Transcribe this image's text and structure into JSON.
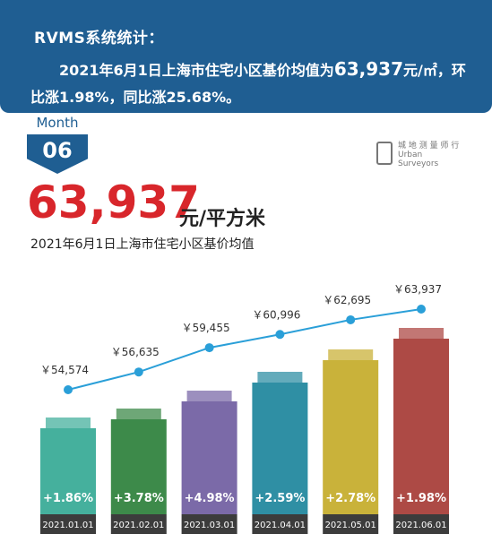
{
  "banner": {
    "title": "RVMS系统统计：",
    "line_pre": "2021年6月1日上海市住宅小区基价均值为",
    "line_value": "63,937",
    "line_post": "元/㎡，环比涨1.98%，同比涨25.68%。"
  },
  "month": {
    "label": "Month",
    "number": "06"
  },
  "logo": {
    "line1": "城 地 测 量 师 行",
    "line2": "Urban",
    "line3": "Surveyors"
  },
  "headline": {
    "value": "63,937",
    "unit": "元/平方米",
    "subtitle": "2021年6月1日上海市住宅小区基价均值"
  },
  "colors": {
    "line": "#2a9fd8",
    "bars": [
      "#45b09d",
      "#3d8a4a",
      "#7b6aa8",
      "#2f8fa4",
      "#c9b23a",
      "#ad4a45"
    ],
    "date_bg": "#3c3c3c"
  },
  "chart_data": {
    "type": "bar",
    "categories": [
      "2021.01.01",
      "2021.02.01",
      "2021.03.01",
      "2021.04.01",
      "2021.05.01",
      "2021.06.01"
    ],
    "values": [
      54574,
      56635,
      59455,
      60996,
      62695,
      63937
    ],
    "value_labels": [
      "￥54,574",
      "￥56,635",
      "￥59,455",
      "￥60,996",
      "￥62,695",
      "￥63,937"
    ],
    "change_labels": [
      "+1.86%",
      "+3.78%",
      "+4.98%",
      "+2.59%",
      "+2.78%",
      "+1.98%"
    ],
    "changes": [
      1.86,
      3.78,
      4.98,
      2.59,
      2.78,
      1.98
    ],
    "title": "2021年6月1日上海市住宅小区基价均值"
  }
}
